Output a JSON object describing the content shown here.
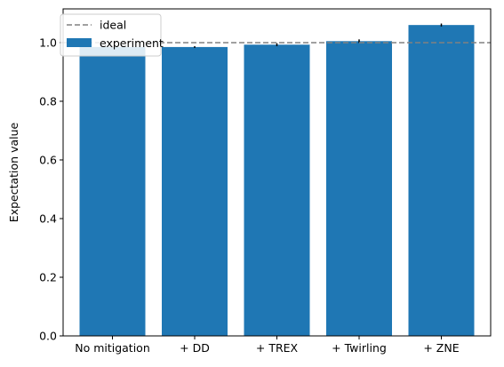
{
  "chart_data": {
    "type": "bar",
    "title": "",
    "xlabel": "",
    "ylabel": "Expectation value",
    "categories": [
      "No mitigation",
      "+ DD",
      "+ TREX",
      "+ Twirling",
      "+ ZNE"
    ],
    "values": [
      0.985,
      0.985,
      0.993,
      1.005,
      1.06
    ],
    "errors": [
      0.003,
      0.003,
      0.005,
      0.006,
      0.005
    ],
    "ylim": [
      0.0,
      1.115
    ],
    "yticks": [
      0.0,
      0.2,
      0.4,
      0.6,
      0.8,
      1.0
    ],
    "ytick_labels": [
      "0.0",
      "0.2",
      "0.4",
      "0.6",
      "0.8",
      "1.0"
    ],
    "reference_line": {
      "name": "ideal",
      "value": 1.0,
      "style": "dashed",
      "color": "#808080"
    },
    "series_name": "experiment",
    "bar_color": "#1f77b4",
    "grid": false,
    "legend_position": "top-left",
    "legend": [
      "ideal",
      "experiment"
    ]
  }
}
